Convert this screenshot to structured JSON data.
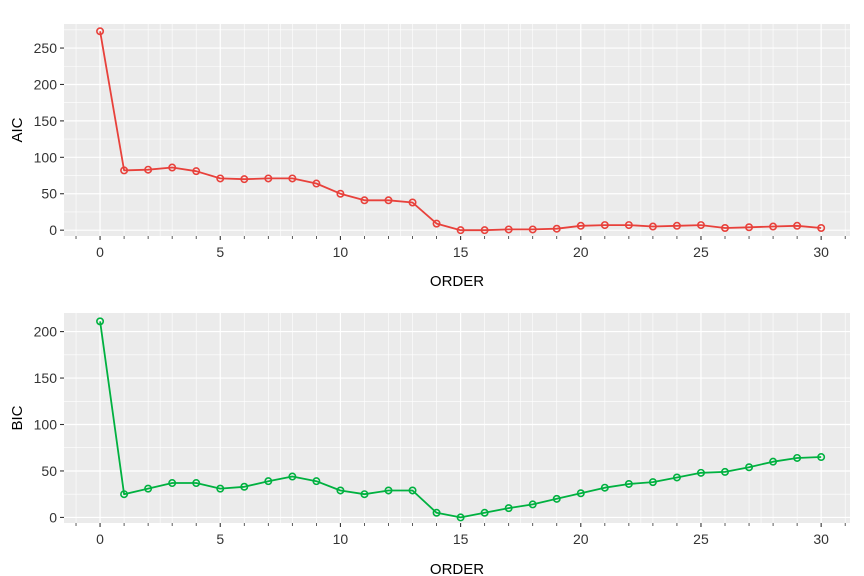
{
  "chart_data": [
    {
      "type": "line",
      "title": "",
      "xlabel": "ORDER",
      "ylabel": "AIC",
      "xlim": [
        -1.5,
        31.2
      ],
      "ylim": [
        -8,
        283
      ],
      "xticks": [
        0,
        5,
        10,
        15,
        20,
        25,
        30
      ],
      "xtick_labels": [
        "0",
        "5",
        "10",
        "15",
        "20",
        "25",
        "30"
      ],
      "yticks": [
        0,
        50,
        100,
        150,
        200,
        250
      ],
      "ytick_labels": [
        "0",
        "50",
        "100",
        "150",
        "200",
        "250"
      ],
      "grid": true,
      "legend": "none",
      "color": "#e8413b",
      "x": [
        0,
        1,
        2,
        3,
        4,
        5,
        6,
        7,
        8,
        9,
        10,
        11,
        12,
        13,
        14,
        15,
        16,
        17,
        18,
        19,
        20,
        21,
        22,
        23,
        24,
        25,
        26,
        27,
        28,
        29,
        30
      ],
      "values": [
        273,
        82,
        83,
        86,
        81,
        71,
        70,
        71,
        71,
        64,
        50,
        41,
        41,
        38,
        9,
        0,
        0,
        1,
        1,
        2,
        6,
        7,
        7,
        5,
        6,
        7,
        3,
        4,
        5,
        6,
        3
      ]
    },
    {
      "type": "line",
      "title": "",
      "xlabel": "ORDER",
      "ylabel": "BIC",
      "xlim": [
        -1.5,
        31.2
      ],
      "ylim": [
        -6,
        220
      ],
      "xticks": [
        0,
        5,
        10,
        15,
        20,
        25,
        30
      ],
      "xtick_labels": [
        "0",
        "5",
        "10",
        "15",
        "20",
        "25",
        "30"
      ],
      "yticks": [
        0,
        50,
        100,
        150,
        200
      ],
      "ytick_labels": [
        "0",
        "50",
        "100",
        "150",
        "200"
      ],
      "grid": true,
      "legend": "none",
      "color": "#00b140",
      "x": [
        0,
        1,
        2,
        3,
        4,
        5,
        6,
        7,
        8,
        9,
        10,
        11,
        12,
        13,
        14,
        15,
        16,
        17,
        18,
        19,
        20,
        21,
        22,
        23,
        24,
        25,
        26,
        27,
        28,
        29,
        30
      ],
      "values": [
        211,
        25,
        31,
        37,
        37,
        31,
        33,
        39,
        44,
        39,
        29,
        25,
        29,
        29,
        5,
        0,
        5,
        10,
        14,
        20,
        26,
        32,
        36,
        38,
        43,
        48,
        49,
        54,
        60,
        64,
        65
      ]
    }
  ]
}
